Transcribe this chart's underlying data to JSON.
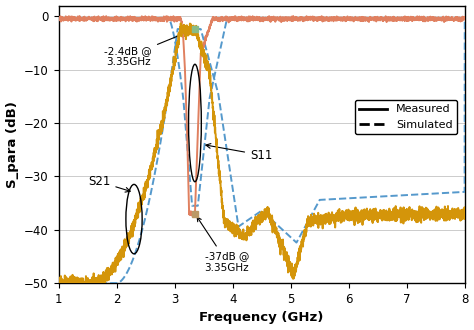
{
  "xlabel": "Frequency (GHz)",
  "ylabel": "S_para (dB)",
  "xlim": [
    1,
    8
  ],
  "ylim": [
    -50,
    2
  ],
  "yticks": [
    0,
    -10,
    -20,
    -30,
    -40,
    -50
  ],
  "xticks": [
    1,
    2,
    3,
    4,
    5,
    6,
    7,
    8
  ],
  "color_s21_meas": "#D4950A",
  "color_s11_meas": "#E08060",
  "color_sim": "#5599CC",
  "annotation1_text": "-2.4dB @\n3.35GHz",
  "annotation2_text": "-37dB @\n3.35GHz",
  "label_s11": "S11",
  "label_s21": "S21",
  "legend_measured": "Measured",
  "legend_simulated": "Simulated",
  "grid_color": "#CCCCCC",
  "background_color": "#FFFFFF",
  "marker_color_top": "#88BB88",
  "marker_color_bot": "#BB9966"
}
